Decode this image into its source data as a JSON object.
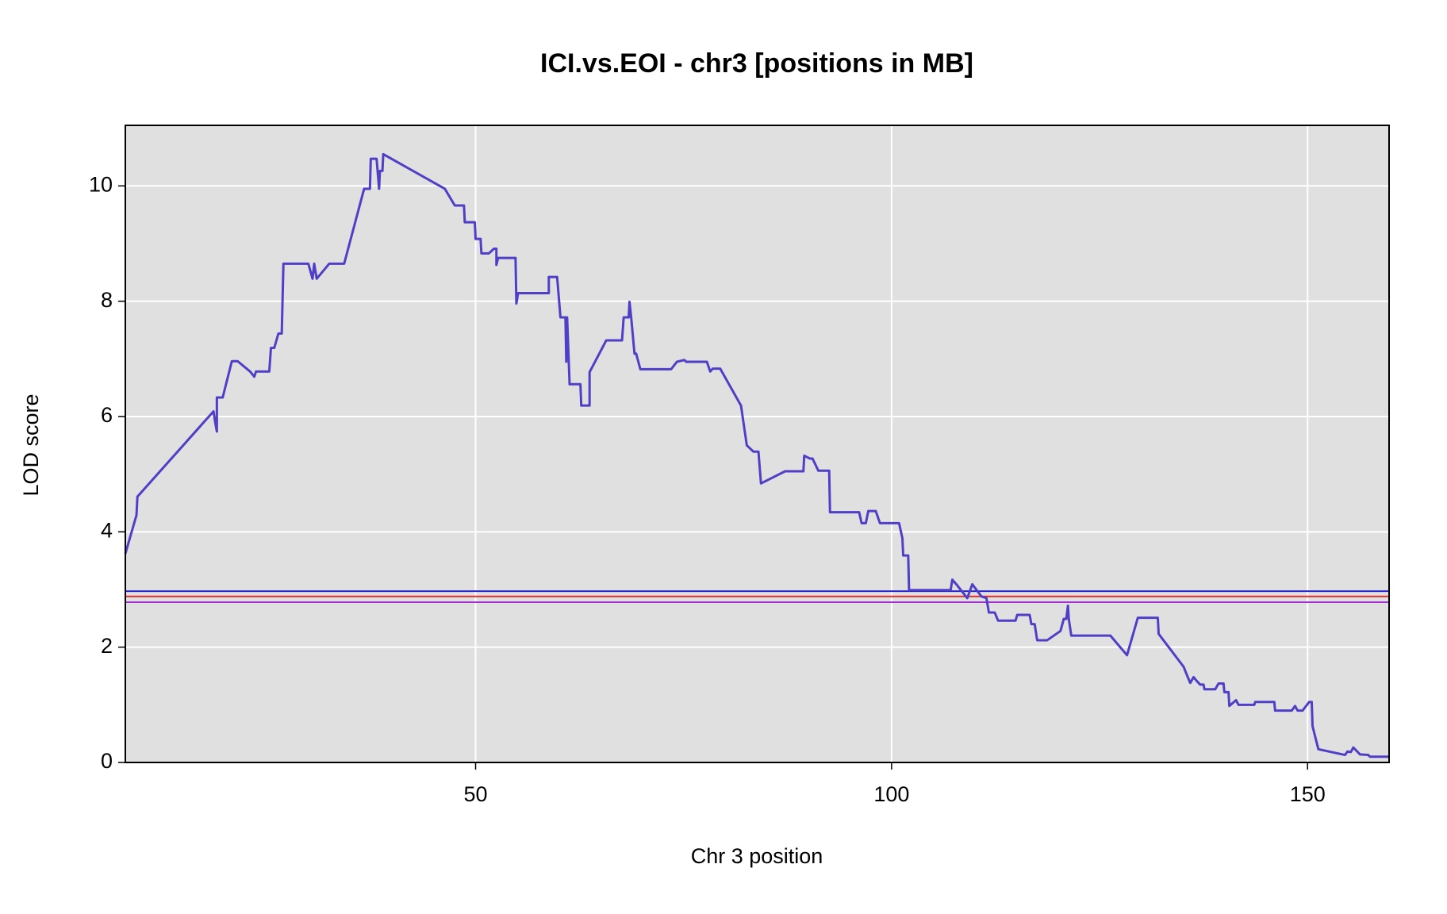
{
  "chart_data": {
    "type": "line",
    "title": "ICI.vs.EOI - chr3 [positions in MB]",
    "x_label": "Chr 3 position",
    "y_label": "LOD score",
    "xlim": [
      7.9,
      159.8
    ],
    "ylim": [
      0,
      11.05
    ],
    "xticks": [
      50,
      100,
      150
    ],
    "yticks": [
      0,
      2,
      4,
      6,
      8,
      10
    ],
    "grid": true,
    "series": [
      {
        "color": "#4f3fc6",
        "x": [
          7.9,
          9.24,
          9.35,
          18.5,
          18.7,
          18.9,
          18.9,
          19.6,
          20.7,
          21.4,
          22.9,
          23.4,
          23.6,
          25.2,
          25.4,
          25.8,
          26.3,
          26.7,
          26.9,
          29.9,
          30.4,
          30.6,
          30.9,
          32.4,
          34.2,
          36.6,
          37.3,
          37.4,
          38.1,
          38.4,
          38.5,
          38.8,
          38.9,
          46.3,
          47.5,
          48.6,
          48.7,
          49.9,
          50.0,
          50.6,
          50.7,
          51.6,
          52.2,
          52.5,
          52.5,
          52.7,
          54.8,
          54.9,
          55.1,
          58.8,
          58.8,
          59.8,
          60.2,
          60.8,
          60.9,
          61.0,
          61.3,
          62.6,
          62.7,
          63.7,
          63.7,
          65.7,
          67.6,
          67.8,
          68.4,
          68.5,
          68.7,
          69.1,
          69.3,
          69.8,
          73.5,
          74.2,
          75.1,
          75.3,
          77.8,
          78.2,
          78.5,
          79.4,
          81.9,
          82.6,
          83.4,
          84.0,
          84.3,
          87.2,
          89.4,
          89.5,
          90.2,
          90.5,
          91.2,
          92.5,
          92.6,
          96.1,
          96.4,
          96.9,
          97.2,
          98.1,
          98.6,
          100.9,
          101.3,
          101.4,
          102.0,
          102.1,
          107.1,
          107.3,
          107.9,
          109.1,
          109.7,
          110.8,
          111.4,
          111.7,
          112.4,
          112.8,
          114.9,
          115.1,
          116.6,
          116.8,
          117.2,
          117.5,
          118.7,
          120.3,
          120.7,
          121.0,
          121.2,
          121.3,
          121.6,
          126.3,
          128.3,
          129.6,
          132.0,
          132.1,
          135.1,
          135.6,
          135.9,
          136.3,
          136.7,
          137.1,
          137.5,
          137.6,
          138.9,
          139.3,
          139.9,
          140.0,
          140.5,
          140.6,
          141.4,
          141.7,
          143.6,
          143.7,
          146.0,
          146.1,
          148.1,
          148.5,
          148.8,
          149.4,
          150.2,
          150.5,
          150.6,
          151.0,
          151.3,
          154.5,
          154.8,
          155.2,
          155.5,
          156.3,
          157.3,
          157.5,
          159.8
        ],
        "values": [
          3.62,
          4.29,
          4.61,
          6.09,
          5.9,
          5.74,
          6.33,
          6.33,
          6.96,
          6.96,
          6.78,
          6.69,
          6.78,
          6.78,
          7.19,
          7.19,
          7.44,
          7.44,
          8.65,
          8.65,
          8.39,
          8.65,
          8.39,
          8.65,
          8.65,
          9.95,
          9.95,
          10.47,
          10.47,
          9.95,
          10.26,
          10.26,
          10.55,
          9.95,
          9.66,
          9.66,
          9.37,
          9.37,
          9.08,
          9.08,
          8.83,
          8.83,
          8.91,
          8.91,
          8.63,
          8.75,
          8.75,
          7.96,
          8.14,
          8.14,
          8.42,
          8.42,
          7.72,
          7.72,
          6.95,
          7.72,
          6.56,
          6.56,
          6.19,
          6.19,
          6.77,
          7.32,
          7.32,
          7.72,
          7.72,
          7.99,
          7.72,
          7.09,
          7.09,
          6.82,
          6.82,
          6.95,
          6.98,
          6.95,
          6.95,
          6.78,
          6.83,
          6.83,
          6.19,
          5.5,
          5.39,
          5.39,
          4.84,
          5.05,
          5.05,
          5.32,
          5.27,
          5.27,
          5.06,
          5.06,
          4.34,
          4.34,
          4.15,
          4.15,
          4.36,
          4.36,
          4.15,
          4.15,
          3.89,
          3.59,
          3.59,
          2.99,
          2.99,
          3.17,
          3.07,
          2.85,
          3.09,
          2.88,
          2.85,
          2.6,
          2.6,
          2.46,
          2.46,
          2.56,
          2.56,
          2.4,
          2.4,
          2.12,
          2.12,
          2.28,
          2.49,
          2.49,
          2.72,
          2.49,
          2.2,
          2.2,
          1.86,
          2.51,
          2.51,
          2.23,
          1.66,
          1.48,
          1.38,
          1.48,
          1.41,
          1.35,
          1.35,
          1.27,
          1.27,
          1.37,
          1.37,
          1.22,
          1.22,
          0.98,
          1.08,
          1.0,
          1.0,
          1.05,
          1.05,
          0.9,
          0.9,
          0.98,
          0.9,
          0.9,
          1.05,
          1.05,
          0.63,
          0.4,
          0.23,
          0.13,
          0.19,
          0.18,
          0.26,
          0.14,
          0.13,
          0.1,
          0.1
        ]
      }
    ],
    "hlines": [
      {
        "value": 2.97,
        "color": "#2424d0"
      },
      {
        "value": 2.88,
        "color": "#e03030"
      },
      {
        "value": 2.78,
        "color": "#a030d0"
      }
    ]
  }
}
